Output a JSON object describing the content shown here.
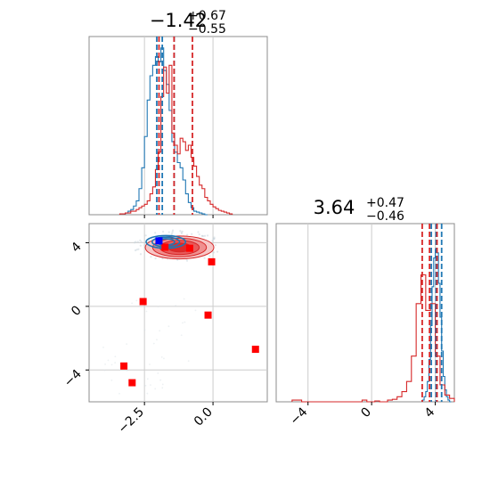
{
  "colors": {
    "blue": "#1f77b4",
    "red": "#d62728",
    "red_fill": "#e84a4a",
    "marker_red": "#ff0000",
    "marker_blue": "#0000ff",
    "frame": "#8c8c8c",
    "grid": "#cccccc"
  },
  "chart_data": [
    {
      "type": "histogram",
      "panel": "top-left",
      "title": {
        "base": "−1.42",
        "sup": "+0.67",
        "sub": "−0.55"
      },
      "xlim": [
        -4.52,
        1.98
      ],
      "grid_x": [
        -2.5,
        0.0
      ],
      "series": [
        {
          "name": "",
          "color": "blue",
          "bin_edges": [
            -3.2,
            -3.1,
            -3.0,
            -2.9,
            -2.8,
            -2.7,
            -2.6,
            -2.5,
            -2.4,
            -2.3,
            -2.2,
            -2.1,
            -2.0,
            -1.9,
            -1.8,
            -1.7,
            -1.6,
            -1.5,
            -1.4,
            -1.3,
            -1.2,
            -1.1,
            -1.0,
            -0.9,
            -0.8,
            -0.7,
            -0.6,
            -0.5,
            -0.4,
            -0.3,
            -0.2
          ],
          "counts": [
            0.01,
            0.02,
            0.03,
            0.05,
            0.08,
            0.15,
            0.27,
            0.45,
            0.66,
            0.8,
            0.86,
            0.91,
            0.88,
            0.96,
            0.83,
            0.75,
            0.6,
            0.42,
            0.36,
            0.3,
            0.27,
            0.2,
            0.12,
            0.07,
            0.04,
            0.02,
            0.015,
            0.01,
            0.005,
            0.0
          ],
          "quantile_lines": [
            -2.05,
            -1.85,
            -1.42
          ]
        },
        {
          "name": "",
          "color": "red",
          "bin_edges": [
            -3.4,
            -3.3,
            -3.2,
            -3.1,
            -3.0,
            -2.9,
            -2.8,
            -2.7,
            -2.6,
            -2.5,
            -2.4,
            -2.3,
            -2.2,
            -2.1,
            -2.0,
            -1.9,
            -1.8,
            -1.7,
            -1.6,
            -1.5,
            -1.4,
            -1.3,
            -1.2,
            -1.1,
            -1.0,
            -0.9,
            -0.8,
            -0.7,
            -0.6,
            -0.5,
            -0.4,
            -0.3,
            -0.2,
            -0.1,
            0.0,
            0.1,
            0.2,
            0.3,
            0.4,
            0.5,
            0.6,
            0.7
          ],
          "counts": [
            0.005,
            0.005,
            0.01,
            0.01,
            0.02,
            0.02,
            0.03,
            0.04,
            0.05,
            0.06,
            0.08,
            0.12,
            0.16,
            0.26,
            0.36,
            0.68,
            0.85,
            0.7,
            0.86,
            0.47,
            0.4,
            0.35,
            0.44,
            0.42,
            0.37,
            0.4,
            0.33,
            0.28,
            0.22,
            0.17,
            0.15,
            0.1,
            0.08,
            0.06,
            0.045,
            0.035,
            0.025,
            0.02,
            0.015,
            0.01,
            0.005
          ],
          "quantile_lines": [
            -1.97,
            -1.42,
            -0.75
          ]
        }
      ]
    },
    {
      "type": "scatter_contour",
      "panel": "bottom-left",
      "xlim": [
        -4.52,
        1.98
      ],
      "ylim": [
        -6.0,
        5.2
      ],
      "xticks": [
        -2.5,
        0.0
      ],
      "xtick_labels": [
        "−2.5",
        "0.0"
      ],
      "yticks": [
        -4,
        0,
        4
      ],
      "ytick_labels": [
        "−4",
        "0",
        "4"
      ],
      "red_contour": {
        "center": [
          -1.22,
          3.7
        ],
        "rx": [
          1.25,
          0.98,
          0.72,
          0.42
        ],
        "ry": [
          0.72,
          0.58,
          0.44,
          0.28
        ]
      },
      "blue_contour": {
        "center": [
          -1.72,
          4.05
        ],
        "rx": [
          0.72,
          0.5,
          0.32
        ],
        "ry": [
          0.4,
          0.3,
          0.2
        ]
      },
      "red_points": [
        [
          -1.75,
          3.72
        ],
        [
          -0.85,
          3.65
        ],
        [
          -0.05,
          2.8
        ],
        [
          -2.55,
          0.3
        ],
        [
          -0.18,
          -0.55
        ],
        [
          1.55,
          -2.7
        ],
        [
          -3.25,
          -3.75
        ],
        [
          -2.95,
          -4.8
        ]
      ],
      "blue_points": [
        [
          -1.97,
          4.12
        ]
      ]
    },
    {
      "type": "histogram",
      "panel": "bottom-right",
      "title": {
        "base": "3.64",
        "sup": "+0.47",
        "sub": "−0.46"
      },
      "xlim": [
        -6.0,
        5.2
      ],
      "xticks": [
        -4,
        0,
        4
      ],
      "xtick_labels": [
        "−4",
        "0",
        "4"
      ],
      "series": [
        {
          "name": "",
          "color": "blue",
          "bin_edges": [
            3.2,
            3.3,
            3.4,
            3.5,
            3.6,
            3.7,
            3.8,
            3.9,
            4.0,
            4.1,
            4.2,
            4.3,
            4.4,
            4.5,
            4.6,
            4.7,
            4.8,
            4.9,
            5.0
          ],
          "counts": [
            0.01,
            0.03,
            0.06,
            0.12,
            0.25,
            0.45,
            0.68,
            0.85,
            0.9,
            0.88,
            0.7,
            0.5,
            0.3,
            0.15,
            0.07,
            0.03,
            0.01,
            0.0
          ],
          "quantile_lines": [
            3.75,
            4.05,
            4.4
          ]
        },
        {
          "name": "",
          "color": "red",
          "bin_edges": [
            -5.0,
            -4.4,
            -0.6,
            -0.3,
            0.2,
            0.5,
            1.0,
            1.3,
            1.6,
            1.9,
            2.2,
            2.5,
            2.8,
            3.1,
            3.4,
            3.7,
            4.0,
            4.3,
            4.6,
            4.9,
            5.2
          ],
          "counts": [
            0.01,
            0.0,
            0.01,
            0.0,
            0.005,
            0.0,
            0.01,
            0.015,
            0.03,
            0.06,
            0.12,
            0.27,
            0.58,
            0.75,
            0.54,
            0.58,
            0.27,
            0.1,
            0.04,
            0.02
          ],
          "quantile_lines": [
            3.18,
            3.64,
            4.11
          ]
        }
      ]
    }
  ]
}
